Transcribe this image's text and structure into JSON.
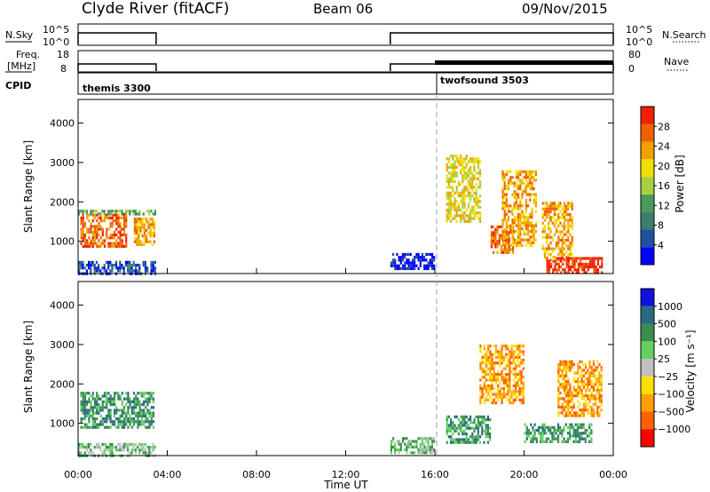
{
  "header": {
    "station": "Clyde River (fitACF)",
    "beam": "Beam 06",
    "date": "09/Nov/2015"
  },
  "top_panels": {
    "nsky_label": "N.Sky",
    "nsky_ticks": [
      "10^5",
      "10^0"
    ],
    "nsearch_label": "N.Search",
    "nsearch_ticks": [
      "10^5",
      "10^0"
    ],
    "freq_label": "Freq.",
    "freq_unit": "[MHz]",
    "freq_ticks": [
      "18",
      "8"
    ],
    "nave_label": "Nave",
    "nave_ticks": [
      "80",
      "0"
    ],
    "cpid_label": "CPID",
    "cpid_modes": [
      {
        "name": "themis 3300",
        "start": 0.0
      },
      {
        "name": "twofsound 3503",
        "start": 16.0
      }
    ],
    "data_segments": [
      [
        0.0,
        3.5
      ],
      [
        14.0,
        24.0
      ]
    ]
  },
  "colors": {
    "power_scale": [
      "#0000ff",
      "#2050a0",
      "#3a7f6a",
      "#4a9a5a",
      "#a8d040",
      "#f0e000",
      "#f0a000",
      "#f06000",
      "#f02000"
    ],
    "velocity_scale": [
      "#ff0000",
      "#ff6000",
      "#ffa000",
      "#ffe000",
      "#c0c0c0",
      "#60d060",
      "#3a8f50",
      "#2a6a80",
      "#1010e0"
    ],
    "frame": "#000000",
    "dashed_line": "#a0a0a0"
  },
  "chart_data": [
    {
      "type": "heatmap",
      "name": "power-panel",
      "xlabel": "",
      "ylabel": "Slant Range [km]",
      "xlim": [
        0,
        24
      ],
      "ylim": [
        180,
        4600
      ],
      "yticks": [
        "4000",
        "3000",
        "2000",
        "1000"
      ],
      "ytick_values": [
        4000,
        3000,
        2000,
        1000
      ],
      "colorbar": {
        "label": "Power [dB]",
        "ticks": [
          "28",
          "24",
          "20",
          "16",
          "12",
          "8",
          "4"
        ],
        "range": [
          0,
          30
        ]
      },
      "regions": [
        {
          "t0": 0.0,
          "t1": 3.5,
          "r0": 1700,
          "r1": 1800,
          "value": 12
        },
        {
          "t0": 0.1,
          "t1": 2.2,
          "r0": 900,
          "r1": 1700,
          "value": 24
        },
        {
          "t0": 2.5,
          "t1": 3.4,
          "r0": 900,
          "r1": 1600,
          "value": 20
        },
        {
          "t0": 0.0,
          "t1": 3.5,
          "r0": 200,
          "r1": 500,
          "value": 6
        },
        {
          "t0": 14.0,
          "t1": 16.0,
          "r0": 300,
          "r1": 700,
          "value": 3
        },
        {
          "t0": 16.5,
          "t1": 18.0,
          "r0": 1500,
          "r1": 3200,
          "value": 18
        },
        {
          "t0": 18.5,
          "t1": 19.5,
          "r0": 700,
          "r1": 1400,
          "value": 26
        },
        {
          "t0": 19.0,
          "t1": 20.5,
          "r0": 900,
          "r1": 2800,
          "value": 20
        },
        {
          "t0": 20.8,
          "t1": 22.2,
          "r0": 500,
          "r1": 2000,
          "value": 22
        },
        {
          "t0": 21.0,
          "t1": 23.5,
          "r0": 200,
          "r1": 600,
          "value": 27
        }
      ]
    },
    {
      "type": "heatmap",
      "name": "velocity-panel",
      "xlabel": "Time UT",
      "ylabel": "Slant Range [km]",
      "xlim": [
        0,
        24
      ],
      "ylim": [
        180,
        4600
      ],
      "xticks": [
        "00:00",
        "04:00",
        "08:00",
        "12:00",
        "16:00",
        "20:00",
        "00:00"
      ],
      "xtick_values": [
        0,
        4,
        8,
        12,
        16,
        20,
        24
      ],
      "yticks": [
        "4000",
        "3000",
        "2000",
        "1000"
      ],
      "ytick_values": [
        4000,
        3000,
        2000,
        1000
      ],
      "colorbar": {
        "label": "Velocity [m s⁻¹]",
        "ticks": [
          "1000",
          "500",
          "100",
          "25",
          "−25",
          "−100",
          "−500",
          "−1000"
        ]
      },
      "regions": [
        {
          "t0": 0.1,
          "t1": 3.4,
          "r0": 900,
          "r1": 1800,
          "value": 150
        },
        {
          "t0": 0.0,
          "t1": 3.5,
          "r0": 200,
          "r1": 500,
          "value": 40
        },
        {
          "t0": 14.0,
          "t1": 16.0,
          "r0": 250,
          "r1": 650,
          "value": 90
        },
        {
          "t0": 16.5,
          "t1": 18.5,
          "r0": 500,
          "r1": 1200,
          "value": 300
        },
        {
          "t0": 18.0,
          "t1": 20.0,
          "r0": 1500,
          "r1": 3000,
          "value": -150
        },
        {
          "t0": 20.0,
          "t1": 23.0,
          "r0": 500,
          "r1": 1000,
          "value": 200
        },
        {
          "t0": 21.5,
          "t1": 23.5,
          "r0": 1200,
          "r1": 2600,
          "value": -300
        }
      ]
    }
  ]
}
